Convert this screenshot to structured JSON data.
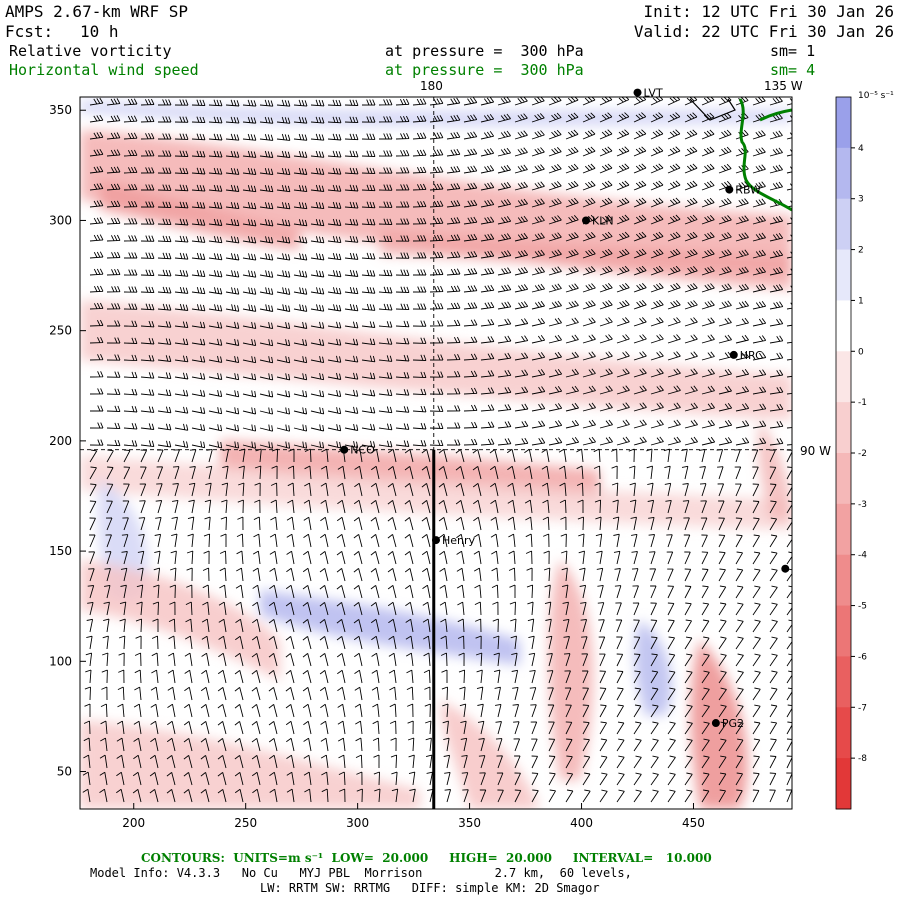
{
  "header": {
    "model_title": "AMPS 2.67-km WRF SP",
    "forecast_label": "Fcst:",
    "forecast_hours": "10 h",
    "init_time": "Init: 12 UTC Fri 30 Jan 26",
    "valid_time": "Valid: 22 UTC Fri 30 Jan 26",
    "field1": {
      "name": "Relative vorticity",
      "pressure": "at pressure =  300 hPa",
      "smooth": "sm= 1"
    },
    "field2": {
      "name": "Horizontal wind speed",
      "pressure": "at pressure =  300 hPa",
      "smooth": "sm= 4"
    }
  },
  "map": {
    "x_ticks": [
      "200",
      "250",
      "300",
      "350",
      "400",
      "450"
    ],
    "x_tick_values": [
      200,
      250,
      300,
      350,
      400,
      450
    ],
    "y_ticks": [
      "50",
      "100",
      "150",
      "200",
      "250",
      "300",
      "350"
    ],
    "y_tick_values": [
      50,
      100,
      150,
      200,
      250,
      300,
      350
    ],
    "x_range": [
      176,
      494
    ],
    "y_range": [
      33,
      356
    ],
    "meridian_label": "180",
    "meridian_label_2": "135 W",
    "parallel_label": "90 W",
    "meridian_x": 334,
    "parallel_y": 196,
    "cross_section_line": {
      "x": 334,
      "y_from": 196,
      "y_to": 33
    },
    "stations": [
      {
        "name": "LVT",
        "x": 425,
        "y": 358
      },
      {
        "name": "RBW",
        "x": 466,
        "y": 314
      },
      {
        "name": "KLN",
        "x": 402,
        "y": 300
      },
      {
        "name": "HRC",
        "x": 468,
        "y": 239
      },
      {
        "name": "NCO",
        "x": 294,
        "y": 196
      },
      {
        "name": "Henry",
        "x": 335,
        "y": 155
      },
      {
        "name": "",
        "x": 491,
        "y": 142
      },
      {
        "name": "PG2",
        "x": 460,
        "y": 72
      }
    ]
  },
  "colorbar": {
    "units": "10⁻⁵ s⁻¹",
    "labels": [
      "4",
      "3",
      "2",
      "1",
      "0",
      "-1",
      "-2",
      "-3",
      "-4",
      "-5",
      "-6",
      "-7",
      "-8"
    ],
    "values": [
      4,
      3,
      2,
      1,
      0,
      -1,
      -2,
      -3,
      -4,
      -5,
      -6,
      -7,
      -8
    ],
    "range": [
      -9,
      5
    ],
    "colors": [
      "#9aa0ea",
      "#b4b8ef",
      "#cdd0f4",
      "#e6e8fa",
      "#ffffff",
      "#fbe6e6",
      "#f8cfcf",
      "#f5b8b8",
      "#f2a2a2",
      "#ef8c8c",
      "#ec7676",
      "#e96060",
      "#e64a4a",
      "#e23838"
    ]
  },
  "footer": {
    "contours": "CONTOURS:  UNITS=m s⁻¹  LOW=  20.000     HIGH=  20.000     INTERVAL=   10.000",
    "model_info": "Model Info: V4.3.3   No Cu   MYJ PBL  Morrison          2.7 km,  60 levels,",
    "physics": "LW: RRTM SW: RRTMG   DIFF: simple KM: 2D Smagor"
  }
}
